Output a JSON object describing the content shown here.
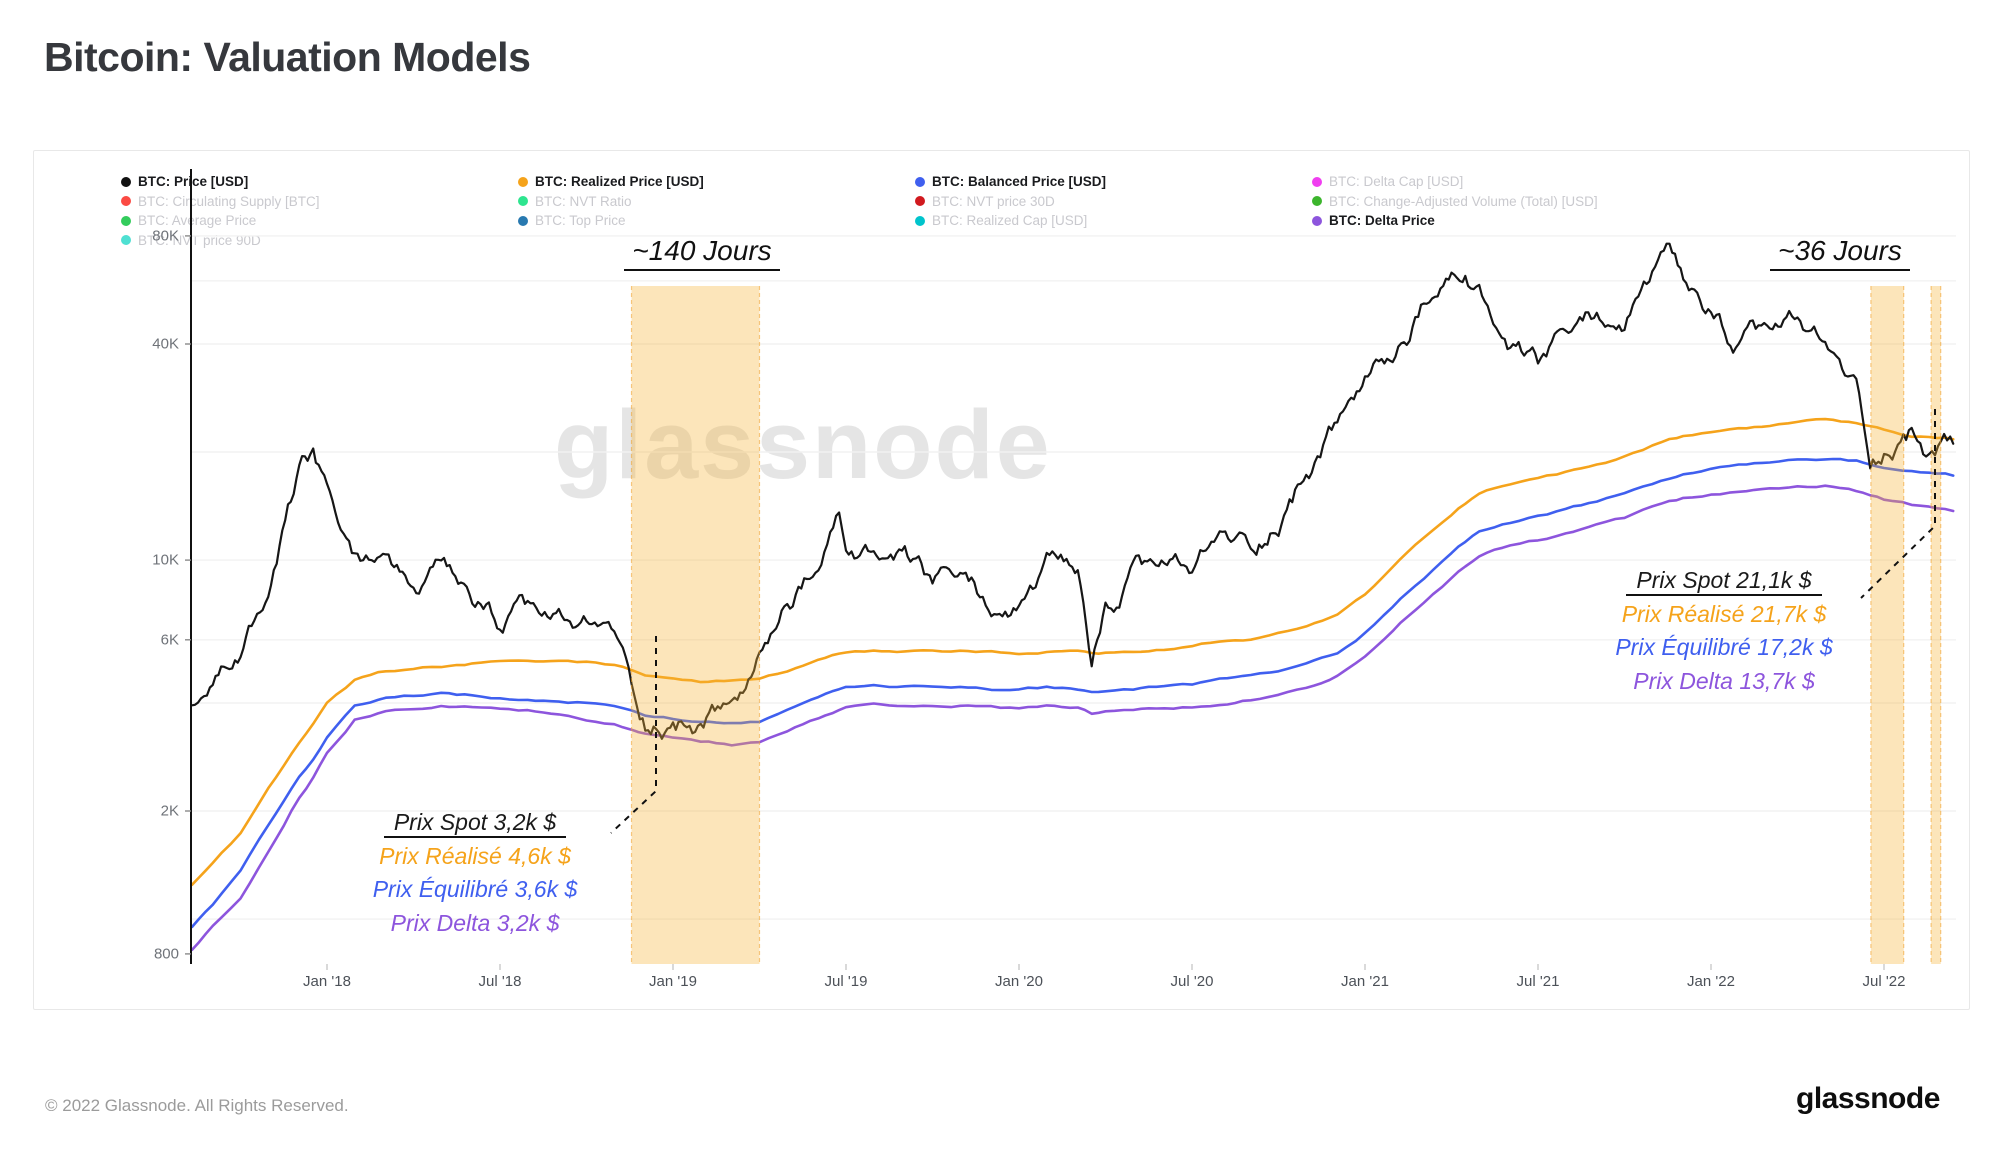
{
  "page": {
    "title": "Bitcoin: Valuation Models",
    "footer_left": "© 2022 Glassnode. All Rights Reserved.",
    "footer_logo": "glassnode",
    "watermark": "glassnode"
  },
  "legend": {
    "columns": [
      [
        {
          "label": "BTC: Price [USD]",
          "color": "#111111",
          "active": true
        },
        {
          "label": "BTC: Circulating Supply [BTC]",
          "color": "#fb4a43",
          "active": false
        },
        {
          "label": "BTC: Average Price",
          "color": "#33cc5c",
          "active": false
        },
        {
          "label": "BTC: NVT price 90D",
          "color": "#4fe0d2",
          "active": false
        }
      ],
      [
        {
          "label": "BTC: Realized Price [USD]",
          "color": "#f5a31b",
          "active": true
        },
        {
          "label": "BTC: NVT Ratio",
          "color": "#2ee58f",
          "active": false
        },
        {
          "label": "BTC: Top Price",
          "color": "#2879b0",
          "active": false
        }
      ],
      [
        {
          "label": "BTC: Balanced Price [USD]",
          "color": "#3f5fef",
          "active": true
        },
        {
          "label": "BTC: NVT price 30D",
          "color": "#d11a1f",
          "active": false
        },
        {
          "label": "BTC: Realized Cap [USD]",
          "color": "#00c4cc",
          "active": false
        }
      ],
      [
        {
          "label": "BTC: Delta Cap [USD]",
          "color": "#f03ef0",
          "active": false
        },
        {
          "label": "BTC: Change-Adjusted Volume (Total) [USD]",
          "color": "#3cb52d",
          "active": false
        },
        {
          "label": "BTC: Delta Price",
          "color": "#8d55dd",
          "active": true
        }
      ]
    ]
  },
  "annotations": {
    "band140": {
      "label": "~140 Jours"
    },
    "band36": {
      "label": "~36 Jours"
    },
    "left_callout": {
      "lines": [
        {
          "text": "Prix Spot 3,2k $",
          "color": "#1a1a1a",
          "underline": true
        },
        {
          "text": "Prix Réalisé 4,6k $",
          "color": "#f5a31b"
        },
        {
          "text": "Prix Équilibré 3,6k $",
          "color": "#3f5fef"
        },
        {
          "text": "Prix Delta 3,2k $",
          "color": "#8d55dd"
        }
      ]
    },
    "right_callout": {
      "lines": [
        {
          "text": "Prix Spot 21,1k $",
          "color": "#1a1a1a",
          "underline": true
        },
        {
          "text": "Prix Réalisé 21,7k $",
          "color": "#f5a31b"
        },
        {
          "text": "Prix Équilibré 17,2k $",
          "color": "#3f5fef"
        },
        {
          "text": "Prix Delta 13,7k $",
          "color": "#8d55dd"
        }
      ]
    }
  },
  "chart_data": {
    "type": "line",
    "title": "Bitcoin: Valuation Models",
    "y_scale": "log",
    "y_unit": "kUSD",
    "x_unit": "decimal_year",
    "x_range": [
      2017.61,
      2022.7
    ],
    "y_range_kusd": [
      0.8,
      80
    ],
    "grid": "horizontal",
    "legend_position": "top",
    "y_ticks": [
      {
        "label": "80K",
        "v": 80
      },
      {
        "label": "40K",
        "v": 40
      },
      {
        "label": "10K",
        "v": 10
      },
      {
        "label": "6K",
        "v": 6
      },
      {
        "label": "2K",
        "v": 2
      },
      {
        "label": "800",
        "v": 0.8
      }
    ],
    "gridline_values": [
      80,
      60,
      40,
      20,
      10,
      6,
      4,
      2,
      1
    ],
    "x_ticks": [
      {
        "label": "Jan '18",
        "t": 2018.0
      },
      {
        "label": "Jul '18",
        "t": 2018.5
      },
      {
        "label": "Jan '19",
        "t": 2019.0
      },
      {
        "label": "Jul '19",
        "t": 2019.5
      },
      {
        "label": "Jan '20",
        "t": 2020.0
      },
      {
        "label": "Jul '20",
        "t": 2020.5
      },
      {
        "label": "Jan '21",
        "t": 2021.0
      },
      {
        "label": "Jul '21",
        "t": 2021.5
      },
      {
        "label": "Jan '22",
        "t": 2022.0
      },
      {
        "label": "Jul '22",
        "t": 2022.5
      }
    ],
    "highlights": [
      {
        "label": "~140 Jours",
        "t_start": 2018.88,
        "t_end": 2019.25
      },
      {
        "label": "~36 Jours",
        "t_start": 2022.462,
        "t_end": 2022.557
      },
      {
        "label": "",
        "t_start": 2022.636,
        "t_end": 2022.664
      }
    ],
    "x": [
      2017.61,
      2017.67,
      2017.75,
      2017.83,
      2017.92,
      2017.96,
      2018.0,
      2018.08,
      2018.17,
      2018.25,
      2018.33,
      2018.42,
      2018.5,
      2018.58,
      2018.67,
      2018.75,
      2018.83,
      2018.88,
      2018.92,
      2019.0,
      2019.08,
      2019.17,
      2019.25,
      2019.33,
      2019.42,
      2019.48,
      2019.5,
      2019.58,
      2019.67,
      2019.75,
      2019.83,
      2019.92,
      2020.0,
      2020.08,
      2020.17,
      2020.21,
      2020.25,
      2020.33,
      2020.42,
      2020.5,
      2020.58,
      2020.67,
      2020.75,
      2020.83,
      2020.92,
      2021.0,
      2021.08,
      2021.17,
      2021.25,
      2021.29,
      2021.33,
      2021.42,
      2021.5,
      2021.58,
      2021.67,
      2021.75,
      2021.83,
      2021.88,
      2021.92,
      2022.0,
      2022.08,
      2022.17,
      2022.25,
      2022.33,
      2022.42,
      2022.46,
      2022.5,
      2022.58,
      2022.63,
      2022.7
    ],
    "series": [
      {
        "name": "BTC: Price [USD]",
        "color": "#161616",
        "width": 2.2,
        "noisy": true,
        "values_kusd": [
          4.0,
          4.4,
          5.6,
          7.8,
          16.5,
          19.0,
          14.5,
          9.6,
          10.8,
          7.9,
          9.0,
          7.4,
          6.6,
          7.0,
          6.6,
          6.4,
          6.3,
          4.4,
          3.6,
          3.5,
          3.5,
          3.9,
          5.1,
          7.5,
          9.2,
          12.9,
          10.8,
          10.2,
          9.6,
          8.3,
          8.8,
          7.3,
          7.2,
          9.4,
          8.6,
          5.0,
          6.9,
          8.8,
          9.5,
          9.2,
          11.4,
          10.8,
          13.0,
          17.5,
          23.5,
          32.0,
          35.5,
          50.0,
          58.5,
          62.5,
          55.0,
          36.5,
          33.5,
          41.0,
          47.5,
          45.0,
          62.0,
          67.5,
          55.0,
          46.5,
          38.5,
          42.5,
          45.5,
          38.5,
          29.5,
          19.5,
          20.5,
          23.0,
          20.0,
          21.1
        ]
      },
      {
        "name": "BTC: Realized Price [USD]",
        "color": "#f5a31b",
        "width": 2.6,
        "noisy": false,
        "values_kusd": [
          1.25,
          1.45,
          1.75,
          2.3,
          3.1,
          3.5,
          4.0,
          4.6,
          4.85,
          4.9,
          5.0,
          5.1,
          5.15,
          5.2,
          5.2,
          5.15,
          5.1,
          4.95,
          4.8,
          4.7,
          4.6,
          4.6,
          4.65,
          4.9,
          5.2,
          5.4,
          5.45,
          5.5,
          5.5,
          5.55,
          5.55,
          5.5,
          5.5,
          5.55,
          5.5,
          5.4,
          5.45,
          5.5,
          5.6,
          5.7,
          5.9,
          6.0,
          6.2,
          6.5,
          7.0,
          8.0,
          9.5,
          11.5,
          13.5,
          14.5,
          15.5,
          16.5,
          17.0,
          17.6,
          18.5,
          19.5,
          20.8,
          21.5,
          22.0,
          22.6,
          23.2,
          23.7,
          24.2,
          24.5,
          24.0,
          23.6,
          23.0,
          22.2,
          21.9,
          21.7
        ]
      },
      {
        "name": "BTC: Balanced Price [USD]",
        "color": "#3f5fef",
        "width": 2.6,
        "noisy": false,
        "values_kusd": [
          0.95,
          1.1,
          1.35,
          1.8,
          2.5,
          2.8,
          3.2,
          3.9,
          4.15,
          4.2,
          4.25,
          4.2,
          4.15,
          4.1,
          4.05,
          4.0,
          3.95,
          3.85,
          3.75,
          3.65,
          3.55,
          3.5,
          3.55,
          3.8,
          4.1,
          4.3,
          4.35,
          4.4,
          4.4,
          4.45,
          4.45,
          4.4,
          4.4,
          4.45,
          4.4,
          4.3,
          4.35,
          4.4,
          4.45,
          4.5,
          4.65,
          4.75,
          4.9,
          5.1,
          5.5,
          6.3,
          7.5,
          9.0,
          10.5,
          11.3,
          12.0,
          12.8,
          13.3,
          13.8,
          14.5,
          15.3,
          16.3,
          16.9,
          17.3,
          17.8,
          18.3,
          18.7,
          19.0,
          19.2,
          18.8,
          18.4,
          18.0,
          17.6,
          17.35,
          17.2
        ]
      },
      {
        "name": "BTC: Delta Price",
        "color": "#8d55dd",
        "width": 2.6,
        "noisy": false,
        "values_kusd": [
          0.82,
          0.95,
          1.15,
          1.55,
          2.2,
          2.5,
          2.9,
          3.6,
          3.85,
          3.9,
          3.95,
          3.9,
          3.85,
          3.8,
          3.7,
          3.6,
          3.5,
          3.4,
          3.3,
          3.2,
          3.1,
          3.05,
          3.1,
          3.3,
          3.6,
          3.8,
          3.85,
          3.9,
          3.9,
          3.95,
          3.95,
          3.9,
          3.85,
          3.9,
          3.85,
          3.7,
          3.75,
          3.8,
          3.85,
          3.9,
          4.0,
          4.1,
          4.25,
          4.45,
          4.8,
          5.5,
          6.5,
          7.8,
          9.0,
          9.7,
          10.3,
          11.0,
          11.4,
          11.8,
          12.4,
          13.0,
          13.9,
          14.4,
          14.7,
          15.1,
          15.5,
          15.8,
          16.0,
          16.1,
          15.6,
          15.2,
          14.8,
          14.3,
          14.0,
          13.7
        ]
      }
    ]
  }
}
